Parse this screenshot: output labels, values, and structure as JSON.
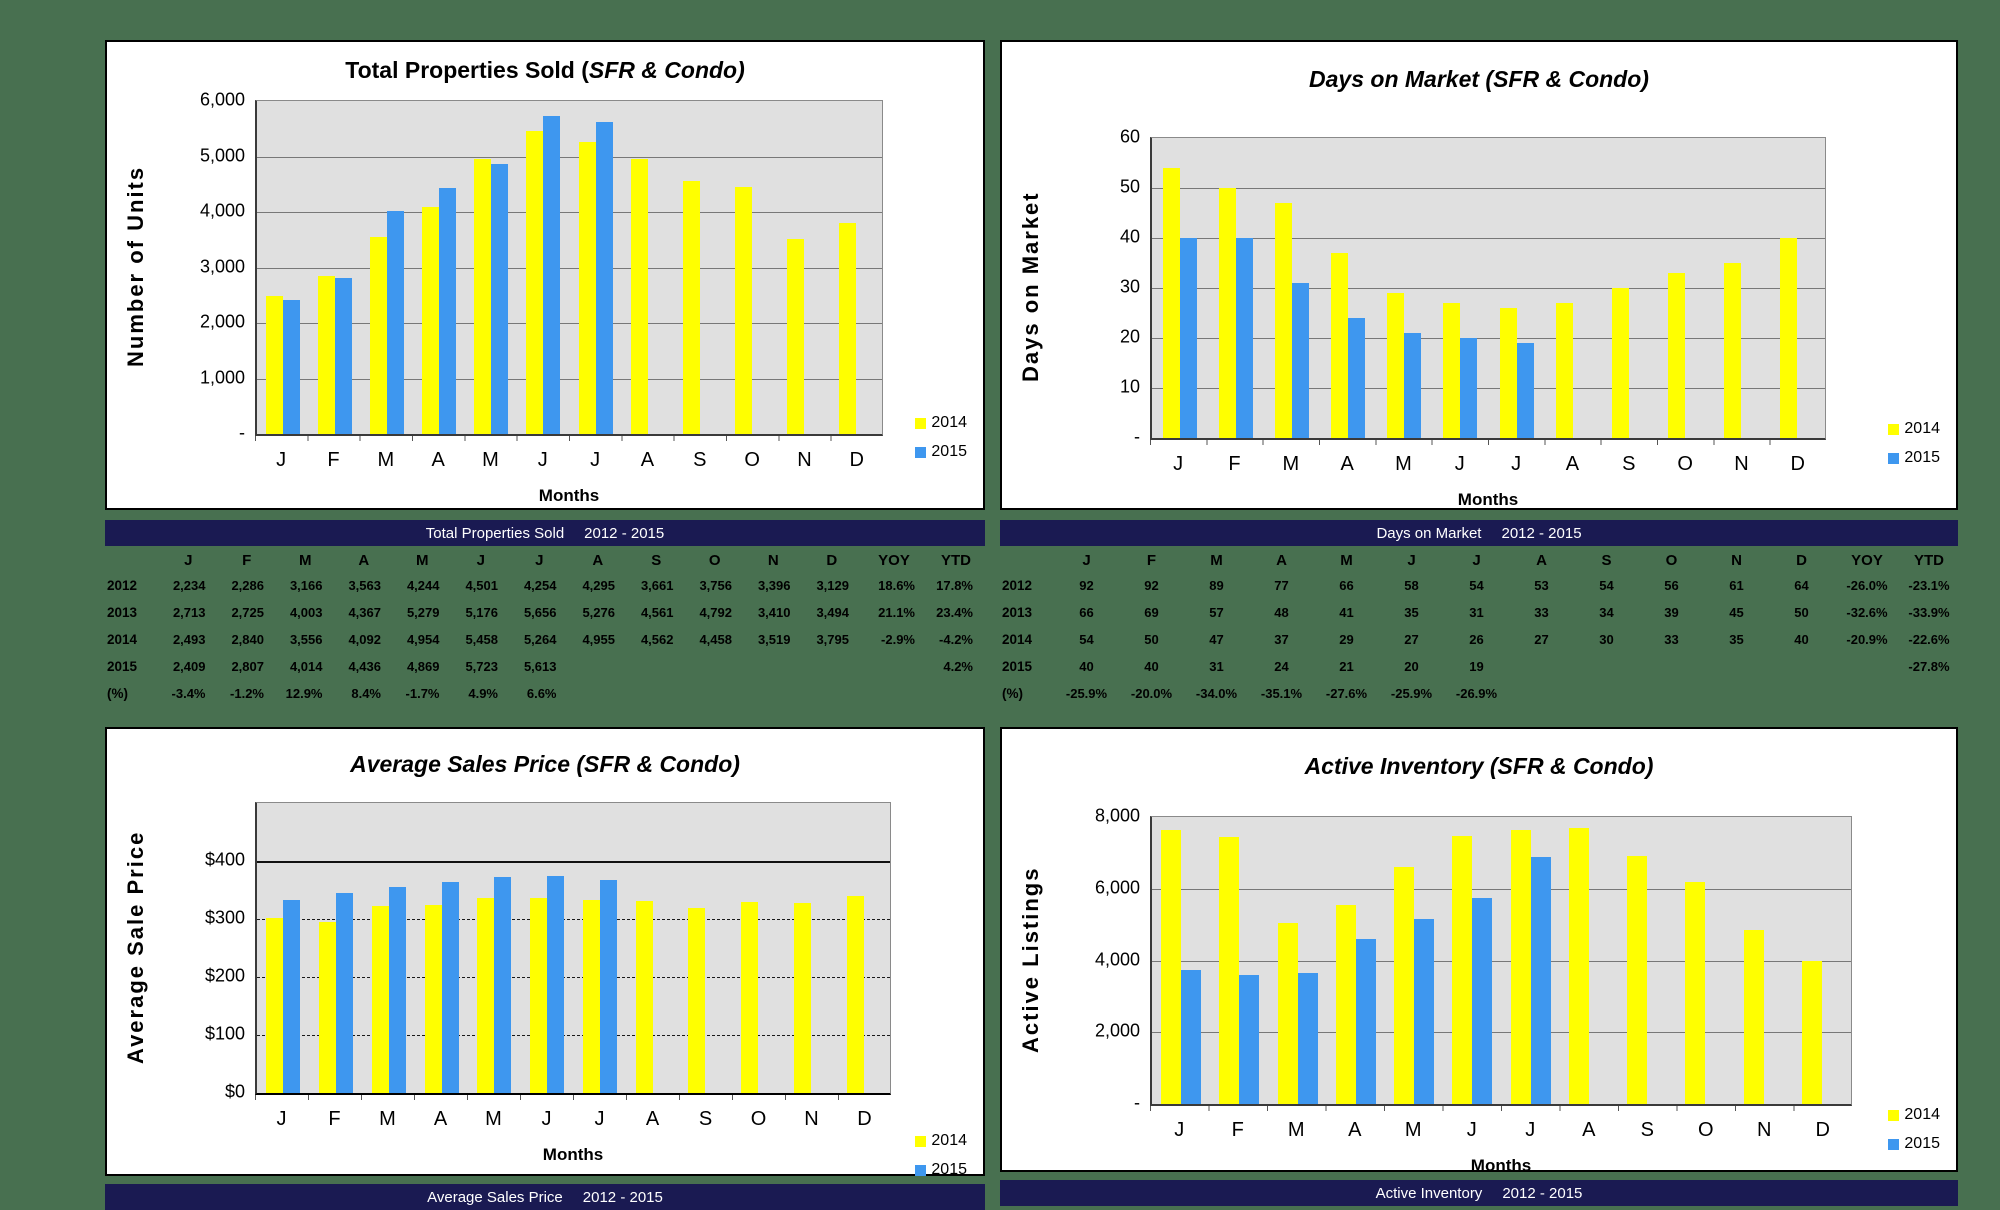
{
  "page": {
    "bg_color": "#487050",
    "panel_bg": "#FFFFFF",
    "header_bar_color": "#1A1A52",
    "plot_bg": "#E0E0E0",
    "bar_yellow": "#FFFF00",
    "bar_blue": "#3E97EF"
  },
  "chart_data": [
    {
      "type": "bar",
      "title_pre": "Total Properties Sold (",
      "title_italic": "SFR & Condo)",
      "ylabel": "Number of Units",
      "xlabel": "Months",
      "categories": [
        "J",
        "F",
        "M",
        "A",
        "M",
        "J",
        "J",
        "A",
        "S",
        "O",
        "N",
        "D"
      ],
      "series": [
        {
          "name": "2014",
          "color": "#FFFF00",
          "values": [
            2493,
            2840,
            3556,
            4092,
            4954,
            5458,
            5264,
            4955,
            4562,
            4458,
            3519,
            3795
          ]
        },
        {
          "name": "2015",
          "color": "#3E97EF",
          "values": [
            2409,
            2807,
            4014,
            4436,
            4869,
            5723,
            5613,
            null,
            null,
            null,
            null,
            null
          ]
        }
      ],
      "ylim": [
        0,
        6000
      ],
      "yticks": [
        {
          "v": 6000,
          "label": "6,000"
        },
        {
          "v": 5000,
          "label": "5,000"
        },
        {
          "v": 4000,
          "label": "4,000"
        },
        {
          "v": 3000,
          "label": "3,000"
        },
        {
          "v": 2000,
          "label": "2,000"
        },
        {
          "v": 1000,
          "label": "1,000"
        },
        {
          "v": 0,
          "label": "-"
        }
      ],
      "gridlines": [
        {
          "v": 1000,
          "style": "solid"
        },
        {
          "v": 2000,
          "style": "solid"
        },
        {
          "v": 3000,
          "style": "solid"
        },
        {
          "v": 4000,
          "style": "solid"
        },
        {
          "v": 5000,
          "style": "solid"
        }
      ],
      "legend": [
        "2014",
        "2015"
      ]
    },
    {
      "type": "bar",
      "title_pre": "",
      "title_italic": "Days on Market (SFR & Condo)",
      "ylabel": "Days on Market",
      "xlabel": "Months",
      "categories": [
        "J",
        "F",
        "M",
        "A",
        "M",
        "J",
        "J",
        "A",
        "S",
        "O",
        "N",
        "D"
      ],
      "series": [
        {
          "name": "2014",
          "color": "#FFFF00",
          "values": [
            54,
            50,
            47,
            37,
            29,
            27,
            26,
            27,
            30,
            33,
            35,
            40
          ]
        },
        {
          "name": "2015",
          "color": "#3E97EF",
          "values": [
            40,
            40,
            31,
            24,
            21,
            20,
            19,
            null,
            null,
            null,
            null,
            null
          ]
        }
      ],
      "ylim": [
        0,
        60
      ],
      "yticks": [
        {
          "v": 60,
          "label": "60"
        },
        {
          "v": 50,
          "label": "50"
        },
        {
          "v": 40,
          "label": "40"
        },
        {
          "v": 30,
          "label": "30"
        },
        {
          "v": 20,
          "label": "20"
        },
        {
          "v": 10,
          "label": "10"
        },
        {
          "v": 0,
          "label": "-"
        }
      ],
      "gridlines": [
        {
          "v": 10,
          "style": "solid"
        },
        {
          "v": 20,
          "style": "solid"
        },
        {
          "v": 30,
          "style": "solid"
        },
        {
          "v": 40,
          "style": "solid"
        },
        {
          "v": 50,
          "style": "solid"
        }
      ],
      "legend": [
        "2014",
        "2015"
      ]
    },
    {
      "type": "bar",
      "title_pre": "",
      "title_italic": "Average Sales Price (SFR & Condo)",
      "ylabel": "Average Sale Price",
      "xlabel": "Months",
      "categories": [
        "J",
        "F",
        "M",
        "A",
        "M",
        "J",
        "J",
        "A",
        "S",
        "O",
        "N",
        "D"
      ],
      "series": [
        {
          "name": "2014",
          "color": "#FFFF00",
          "values": [
            302,
            295,
            322,
            324,
            337,
            337,
            333,
            331,
            319,
            330,
            328,
            340
          ]
        },
        {
          "name": "2015",
          "color": "#3E97EF",
          "values": [
            333,
            344,
            356,
            363,
            373,
            374,
            368,
            null,
            null,
            null,
            null,
            null
          ]
        }
      ],
      "ylim": [
        0,
        500
      ],
      "yticks": [
        {
          "v": 400,
          "label": "$400"
        },
        {
          "v": 300,
          "label": "$300"
        },
        {
          "v": 200,
          "label": "$200"
        },
        {
          "v": 100,
          "label": "$100"
        },
        {
          "v": 0,
          "label": "$0"
        }
      ],
      "gridlines": [
        {
          "v": 100,
          "style": "dashed"
        },
        {
          "v": 200,
          "style": "dashed"
        },
        {
          "v": 300,
          "style": "dashed"
        },
        {
          "v": 400,
          "style": "heavy"
        }
      ],
      "legend": [
        "2014",
        "2015"
      ]
    },
    {
      "type": "bar",
      "title_pre": "",
      "title_italic": "Active Inventory (SFR & Condo)",
      "ylabel": "Active Listings",
      "xlabel": "Months",
      "categories": [
        "J",
        "F",
        "M",
        "A",
        "M",
        "J",
        "J",
        "A",
        "S",
        "O",
        "N",
        "D"
      ],
      "series": [
        {
          "name": "2014",
          "color": "#FFFF00",
          "values": [
            7640,
            7440,
            5050,
            5560,
            6620,
            7460,
            7640,
            7680,
            6900,
            6200,
            4840,
            3980
          ]
        },
        {
          "name": "2015",
          "color": "#3E97EF",
          "values": [
            3740,
            3590,
            3650,
            4590,
            5150,
            5740,
            6880,
            null,
            null,
            null,
            null,
            null
          ]
        }
      ],
      "ylim": [
        0,
        8000
      ],
      "yticks": [
        {
          "v": 8000,
          "label": "8,000"
        },
        {
          "v": 6000,
          "label": "6,000"
        },
        {
          "v": 4000,
          "label": "4,000"
        },
        {
          "v": 2000,
          "label": "2,000"
        },
        {
          "v": 0,
          "label": "-"
        }
      ],
      "gridlines": [
        {
          "v": 2000,
          "style": "solid"
        },
        {
          "v": 4000,
          "style": "solid"
        },
        {
          "v": 6000,
          "style": "solid"
        }
      ],
      "legend": [
        "2014",
        "2015"
      ]
    }
  ],
  "tables": [
    {
      "header_title": "Total Properties Sold",
      "header_range": "2012 - 2015",
      "columns": [
        "J",
        "F",
        "M",
        "A",
        "M",
        "J",
        "J",
        "A",
        "S",
        "O",
        "N",
        "D",
        "YOY",
        "YTD"
      ],
      "rows": [
        {
          "label": "2012",
          "values": [
            "2,234",
            "2,286",
            "3,166",
            "3,563",
            "4,244",
            "4,501",
            "4,254",
            "4,295",
            "3,661",
            "3,756",
            "3,396",
            "3,129"
          ],
          "yoy": "18.6%",
          "ytd": "17.8%"
        },
        {
          "label": "2013",
          "values": [
            "2,713",
            "2,725",
            "4,003",
            "4,367",
            "5,279",
            "5,176",
            "5,656",
            "5,276",
            "4,561",
            "4,792",
            "3,410",
            "3,494"
          ],
          "yoy": "21.1%",
          "ytd": "23.4%"
        },
        {
          "label": "2014",
          "values": [
            "2,493",
            "2,840",
            "3,556",
            "4,092",
            "4,954",
            "5,458",
            "5,264",
            "4,955",
            "4,562",
            "4,458",
            "3,519",
            "3,795"
          ],
          "yoy": "-2.9%",
          "ytd": "-4.2%"
        },
        {
          "label": "2015",
          "values": [
            "2,409",
            "2,807",
            "4,014",
            "4,436",
            "4,869",
            "5,723",
            "5,613",
            "",
            "",
            "",
            "",
            ""
          ],
          "yoy": "",
          "ytd": "4.2%"
        },
        {
          "label": "(%)",
          "values": [
            "-3.4%",
            "-1.2%",
            "12.9%",
            "8.4%",
            "-1.7%",
            "4.9%",
            "6.6%",
            "",
            "",
            "",
            "",
            ""
          ],
          "yoy": "",
          "ytd": ""
        }
      ]
    },
    {
      "header_title": "Days on Market",
      "header_range": "2012 - 2015",
      "columns": [
        "J",
        "F",
        "M",
        "A",
        "M",
        "J",
        "J",
        "A",
        "S",
        "O",
        "N",
        "D",
        "YOY",
        "YTD"
      ],
      "rows": [
        {
          "label": "2012",
          "values": [
            "92",
            "92",
            "89",
            "77",
            "66",
            "58",
            "54",
            "53",
            "54",
            "56",
            "61",
            "64"
          ],
          "yoy": "-26.0%",
          "ytd": "-23.1%"
        },
        {
          "label": "2013",
          "values": [
            "66",
            "69",
            "57",
            "48",
            "41",
            "35",
            "31",
            "33",
            "34",
            "39",
            "45",
            "50"
          ],
          "yoy": "-32.6%",
          "ytd": "-33.9%"
        },
        {
          "label": "2014",
          "values": [
            "54",
            "50",
            "47",
            "37",
            "29",
            "27",
            "26",
            "27",
            "30",
            "33",
            "35",
            "40"
          ],
          "yoy": "-20.9%",
          "ytd": "-22.6%"
        },
        {
          "label": "2015",
          "values": [
            "40",
            "40",
            "31",
            "24",
            "21",
            "20",
            "19",
            "",
            "",
            "",
            "",
            ""
          ],
          "yoy": "",
          "ytd": "-27.8%"
        },
        {
          "label": "(%)",
          "values": [
            "-25.9%",
            "-20.0%",
            "-34.0%",
            "-35.1%",
            "-27.6%",
            "-25.9%",
            "-26.9%",
            "",
            "",
            "",
            "",
            ""
          ],
          "yoy": "",
          "ytd": ""
        }
      ]
    }
  ],
  "bottom_bars": [
    {
      "title": "Average Sales Price",
      "range": "2012 - 2015"
    },
    {
      "title": "Active Inventory",
      "range": "2012 - 2015"
    }
  ]
}
